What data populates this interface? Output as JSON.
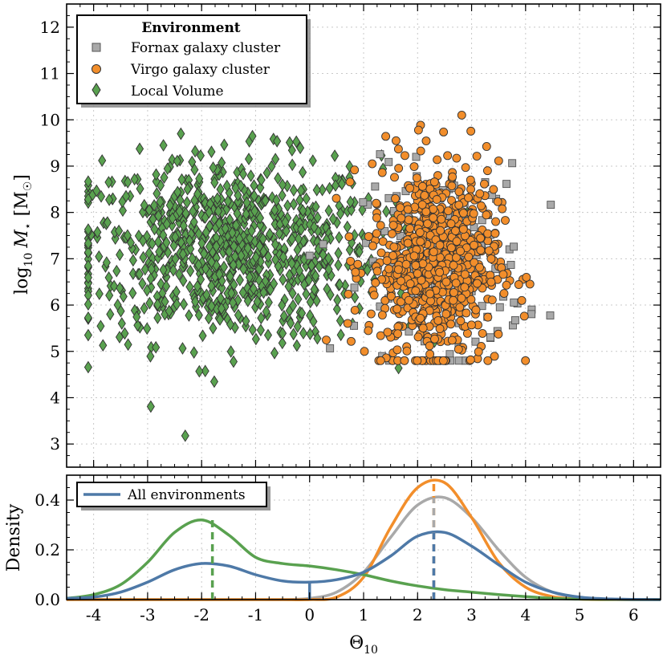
{
  "chart_data": [
    {
      "type": "scatter",
      "xlabel_symbol": "Θ",
      "xlabel_sub": "10",
      "ylabel_prefix": "log",
      "ylabel_sub": "10",
      "ylabel_var": "M",
      "ylabel_var_sub": "⋆",
      "ylabel_unit": "[M",
      "ylabel_unit_sub": "☉",
      "ylabel_unit_end": "]",
      "xlim": [
        -4.5,
        6.5
      ],
      "ylim": [
        2.5,
        12.5
      ],
      "yticks": [
        3,
        4,
        5,
        6,
        7,
        8,
        9,
        10,
        11,
        12
      ],
      "grid": true,
      "legend": {
        "title": "Environment",
        "placement": "top-left",
        "entries": [
          "Fornax galaxy cluster",
          "Virgo galaxy cluster",
          "Local Volume"
        ]
      },
      "series": [
        {
          "name": "Fornax galaxy cluster",
          "marker": "square",
          "color": "#a9a9a9",
          "count": 190,
          "center_x": 2.5,
          "spread_x": 0.75,
          "center_y": 6.9,
          "spread_y": 1.05,
          "x_range": [
            0.0,
            4.7
          ],
          "y_range": [
            4.8,
            11.4
          ]
        },
        {
          "name": "Virgo galaxy cluster",
          "marker": "circle",
          "color": "#f28e2b",
          "count": 700,
          "center_x": 2.3,
          "spread_x": 0.6,
          "center_y": 6.9,
          "spread_y": 1.1,
          "x_range": [
            0.1,
            5.6
          ],
          "y_range": [
            4.8,
            11.3
          ]
        },
        {
          "name": "Local Volume",
          "marker": "diamond",
          "color": "#59a14f",
          "count": 900,
          "center_x": -1.5,
          "spread_x": 1.4,
          "center_y": 7.2,
          "spread_y": 1.0,
          "x_range": [
            -4.1,
            4.0
          ],
          "y_range": [
            2.9,
            10.9
          ]
        }
      ]
    },
    {
      "type": "line",
      "ylabel": "Density",
      "xlim": [
        -4.5,
        6.5
      ],
      "ylim": [
        0.0,
        0.5
      ],
      "xticks": [
        -4,
        -3,
        -2,
        -1,
        0,
        1,
        2,
        3,
        4,
        5,
        6
      ],
      "xtick_labels": [
        "-4",
        "-3",
        "-2",
        "-1",
        "0",
        "1",
        "2",
        "3",
        "4",
        "5",
        "6"
      ],
      "yticks": [
        0.0,
        0.2,
        0.4
      ],
      "ytick_labels": [
        "0.0",
        "0.2",
        "0.4"
      ],
      "grid": true,
      "legend": {
        "placement": "top-left",
        "entries": [
          "All environments"
        ]
      },
      "x": [
        -4.5,
        -4.0,
        -3.5,
        -3.0,
        -2.5,
        -2.0,
        -1.5,
        -1.0,
        -0.5,
        0.0,
        0.5,
        1.0,
        1.5,
        2.0,
        2.5,
        3.0,
        3.5,
        4.0,
        4.5,
        5.0,
        5.5,
        6.0,
        6.5
      ],
      "series": [
        {
          "name": "All environments",
          "color": "#4e79a7",
          "values": [
            0.005,
            0.01,
            0.03,
            0.07,
            0.12,
            0.145,
            0.135,
            0.1,
            0.075,
            0.07,
            0.08,
            0.11,
            0.175,
            0.255,
            0.27,
            0.215,
            0.14,
            0.07,
            0.03,
            0.01,
            0.003,
            0.001,
            0.0
          ]
        },
        {
          "color": "#59a14f",
          "values": [
            0.005,
            0.02,
            0.06,
            0.15,
            0.27,
            0.32,
            0.26,
            0.17,
            0.145,
            0.135,
            0.12,
            0.1,
            0.075,
            0.055,
            0.04,
            0.03,
            0.02,
            0.012,
            0.005,
            0.002,
            0.001,
            0.0,
            0.0
          ]
        },
        {
          "color": "#f28e2b",
          "values": [
            0.0,
            0.0,
            0.0,
            0.0,
            0.0,
            0.0,
            0.0,
            0.0,
            0.0,
            0.0,
            0.01,
            0.09,
            0.29,
            0.45,
            0.47,
            0.33,
            0.15,
            0.05,
            0.012,
            0.002,
            0.0,
            0.0,
            0.0
          ]
        },
        {
          "color": "#a9a9a9",
          "values": [
            0.0,
            0.0,
            0.0,
            0.0,
            0.0,
            0.0,
            0.0,
            0.0,
            0.0,
            0.005,
            0.03,
            0.11,
            0.25,
            0.38,
            0.41,
            0.33,
            0.2,
            0.09,
            0.03,
            0.008,
            0.002,
            0.0,
            0.0
          ]
        }
      ],
      "vertical_markers": [
        {
          "x": -1.8,
          "color": "#59a14f",
          "dashed": true,
          "top": 0.32
        },
        {
          "x": 2.3,
          "color": "#f28e2b",
          "dashed": true,
          "top": 0.48
        },
        {
          "x": 2.3,
          "color": "#a9a9a9",
          "dashed": true,
          "top": 0.41
        },
        {
          "x": 2.3,
          "color": "#4e79a7",
          "dashed": true,
          "top": 0.27
        },
        {
          "x": 0.0,
          "color": "#4e79a7",
          "dashed": false,
          "top": 0.07
        }
      ]
    }
  ]
}
